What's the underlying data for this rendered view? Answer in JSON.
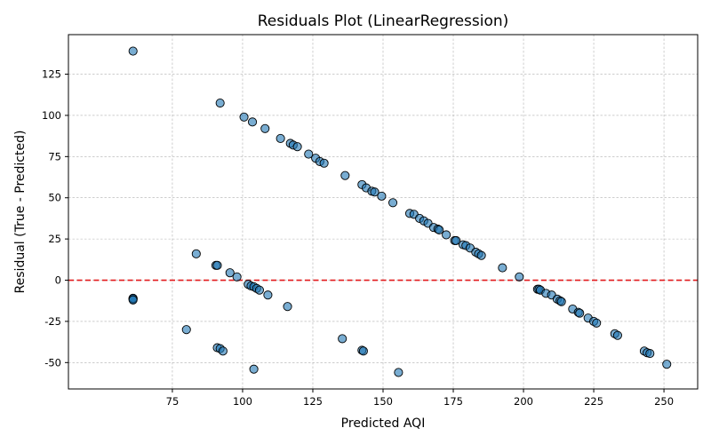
{
  "chart_data": {
    "type": "scatter",
    "title": "Residuals Plot (LinearRegression)",
    "xlabel": "Predicted AQI",
    "ylabel": "Residual (True - Predicted)",
    "xlim": [
      38,
      262
    ],
    "ylim": [
      -66,
      149
    ],
    "xticks": [
      75,
      100,
      125,
      150,
      175,
      200,
      225,
      250
    ],
    "yticks": [
      -50,
      -25,
      0,
      25,
      50,
      75,
      100,
      125
    ],
    "grid": true,
    "reference_line": {
      "y": 0,
      "color": "#e31a1c",
      "style": "dashed"
    },
    "marker_color": "#1f77b4",
    "x": [
      61,
      61,
      61,
      61,
      61,
      92,
      100.5,
      103.5,
      108,
      113.5,
      117,
      118,
      119.5,
      123.5,
      126,
      127.5,
      129,
      136.5,
      142.5,
      144,
      146,
      147,
      149.5,
      153.5,
      159.5,
      161,
      163,
      164.5,
      166,
      168,
      169.5,
      170,
      172.5,
      175.5,
      176,
      178.5,
      179.5,
      181,
      183,
      184,
      185,
      192.5,
      198.5,
      83.5,
      90.5,
      91,
      95.5,
      98,
      102,
      103,
      104,
      105,
      106,
      109,
      116,
      80,
      91,
      92,
      93,
      104,
      135.5,
      142.5,
      143,
      155.5,
      205,
      205.5,
      206,
      208,
      210,
      212,
      213,
      213.5,
      217.5,
      219.5,
      220,
      223,
      225,
      226,
      232.5,
      233.5,
      243,
      244,
      245,
      251
    ],
    "y": [
      139,
      -11,
      -11.5,
      -11,
      -12,
      107.5,
      99,
      96,
      92,
      86,
      83,
      82,
      81,
      76.5,
      74,
      72,
      71,
      63.5,
      58,
      56,
      54,
      53.5,
      51,
      47,
      40.5,
      40,
      37.5,
      36,
      34.5,
      32,
      31,
      30.5,
      27.5,
      24,
      24,
      21.5,
      21,
      19.5,
      17,
      16,
      15,
      7.5,
      2,
      16,
      9,
      9,
      4.5,
      2,
      -2.5,
      -3.5,
      -4,
      -5,
      -6,
      -9,
      -16,
      -30,
      -41,
      -41.5,
      -43,
      -54,
      -35.5,
      -42.5,
      -43,
      -56,
      -5.5,
      -5.5,
      -6,
      -8,
      -9,
      -11.5,
      -12.5,
      -13,
      -17.5,
      -19.5,
      -20,
      -23,
      -25,
      -26,
      -32.5,
      -33.5,
      -43,
      -44,
      -44.5,
      -51
    ]
  }
}
